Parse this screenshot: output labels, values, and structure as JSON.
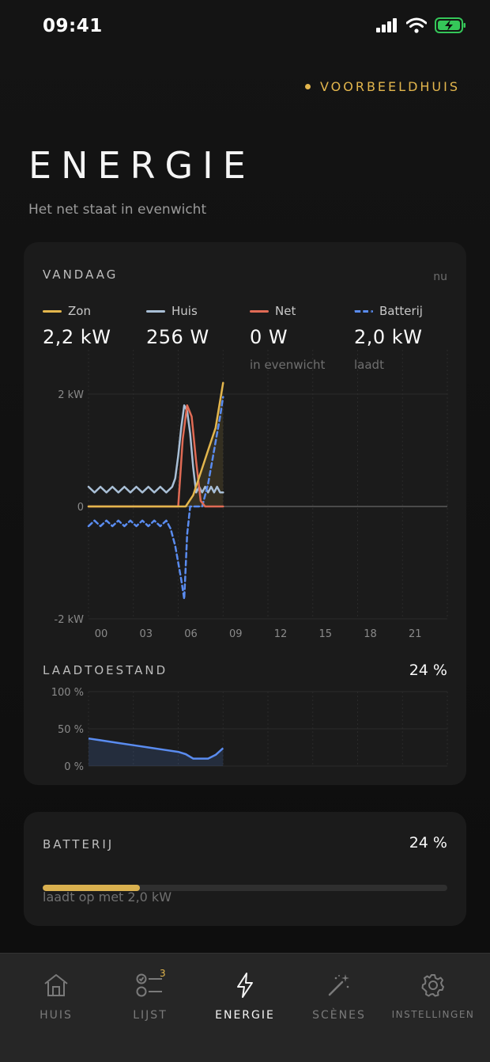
{
  "status": {
    "time": "09:41"
  },
  "header": {
    "home_name": "VOORBEELDHUIS",
    "title": "ENERGIE",
    "subtitle": "Het net staat in evenwicht"
  },
  "today": {
    "section_title": "VANDAAG",
    "now_label": "nu",
    "legend": [
      {
        "label": "Zon",
        "value": "2,2 kW",
        "note": "",
        "color": "#e3b64d"
      },
      {
        "label": "Huis",
        "value": "256 W",
        "note": "",
        "color": "#a9bfd6"
      },
      {
        "label": "Net",
        "value": "0 W",
        "note": "in evenwicht",
        "color": "#e06b55"
      },
      {
        "label": "Batterij",
        "value": "2,0 kW",
        "note": "laadt",
        "color": "#5a8cf0"
      }
    ]
  },
  "chart_data": [
    {
      "type": "line",
      "ylabels": [
        "2 kW",
        "0",
        "-2 kW"
      ],
      "xlabels": [
        "00",
        "03",
        "06",
        "09",
        "12",
        "15",
        "18",
        "21"
      ],
      "xlim": [
        0,
        24
      ],
      "ylim": [
        -2,
        2
      ],
      "grid": true,
      "series": [
        {
          "name": "Zon",
          "color": "#e3b64d",
          "dashed": false,
          "x": [
            0,
            6.5,
            7.0,
            7.5,
            8.0,
            8.5,
            9.0
          ],
          "y": [
            0,
            0,
            0.2,
            0.6,
            1.0,
            1.4,
            2.2
          ]
        },
        {
          "name": "Huis",
          "color": "#a9bfd6",
          "dashed": false,
          "x": [
            0,
            0.4,
            0.8,
            1.2,
            1.6,
            2.0,
            2.4,
            2.8,
            3.2,
            3.6,
            4.0,
            4.4,
            4.8,
            5.2,
            5.6,
            5.8,
            6.0,
            6.2,
            6.4,
            6.6,
            6.8,
            7.0,
            7.2,
            7.4,
            7.6,
            7.8,
            8.0,
            8.2,
            8.4,
            8.6,
            8.8,
            9.0
          ],
          "y": [
            0.35,
            0.25,
            0.35,
            0.25,
            0.35,
            0.25,
            0.35,
            0.25,
            0.35,
            0.25,
            0.35,
            0.25,
            0.35,
            0.25,
            0.35,
            0.5,
            0.9,
            1.4,
            1.8,
            1.7,
            1.3,
            0.7,
            0.25,
            0.35,
            0.25,
            0.35,
            0.25,
            0.35,
            0.25,
            0.35,
            0.25,
            0.25
          ]
        },
        {
          "name": "Net",
          "color": "#e06b55",
          "dashed": false,
          "x": [
            0,
            6.0,
            6.3,
            6.6,
            6.9,
            7.2,
            7.5,
            7.8,
            9.0
          ],
          "y": [
            0,
            0,
            1.2,
            1.8,
            1.6,
            0.8,
            0.1,
            0,
            0
          ]
        },
        {
          "name": "Batterij",
          "color": "#5a8cf0",
          "dashed": true,
          "x": [
            0,
            0.4,
            0.8,
            1.2,
            1.6,
            2.0,
            2.4,
            2.8,
            3.2,
            3.6,
            4.0,
            4.4,
            4.8,
            5.2,
            5.5,
            5.8,
            6.0,
            6.2,
            6.4,
            6.6,
            6.8,
            7.2,
            7.6,
            8.0,
            8.4,
            8.8,
            9.0
          ],
          "y": [
            -0.35,
            -0.25,
            -0.35,
            -0.25,
            -0.35,
            -0.25,
            -0.35,
            -0.25,
            -0.35,
            -0.25,
            -0.35,
            -0.25,
            -0.35,
            -0.25,
            -0.4,
            -0.7,
            -1.0,
            -1.3,
            -1.65,
            -0.5,
            0,
            0,
            0,
            0.4,
            1.0,
            1.6,
            1.95
          ]
        }
      ]
    },
    {
      "type": "area",
      "title": "LAADTOESTAND",
      "ylabels": [
        "100 %",
        "50 %",
        "0 %"
      ],
      "xlim": [
        0,
        24
      ],
      "ylim": [
        0,
        100
      ],
      "color": "#5a8cf0",
      "x": [
        0,
        1,
        2,
        3,
        4,
        5,
        6,
        6.5,
        7,
        7.5,
        8,
        8.5,
        9
      ],
      "y": [
        37,
        34,
        31,
        28,
        25,
        22,
        19,
        16,
        10,
        10,
        10,
        15,
        24
      ]
    }
  ],
  "soc": {
    "title": "LAADTOESTAND",
    "value": "24 %"
  },
  "battery": {
    "title": "BATTERIJ",
    "value": "24 %",
    "fraction": 0.24,
    "note": "laadt op met 2,0 kW",
    "bar_color": "#d9b04f"
  },
  "tabs": [
    {
      "label": "HUIS",
      "icon": "home-icon",
      "active": false,
      "badge": ""
    },
    {
      "label": "LIJST",
      "icon": "checklist-icon",
      "active": false,
      "badge": "3"
    },
    {
      "label": "ENERGIE",
      "icon": "lightning-icon",
      "active": true,
      "badge": ""
    },
    {
      "label": "SCÈNES",
      "icon": "magic-wand-icon",
      "active": false,
      "badge": ""
    },
    {
      "label": "INSTELLINGEN",
      "icon": "gear-icon",
      "active": false,
      "badge": ""
    }
  ]
}
